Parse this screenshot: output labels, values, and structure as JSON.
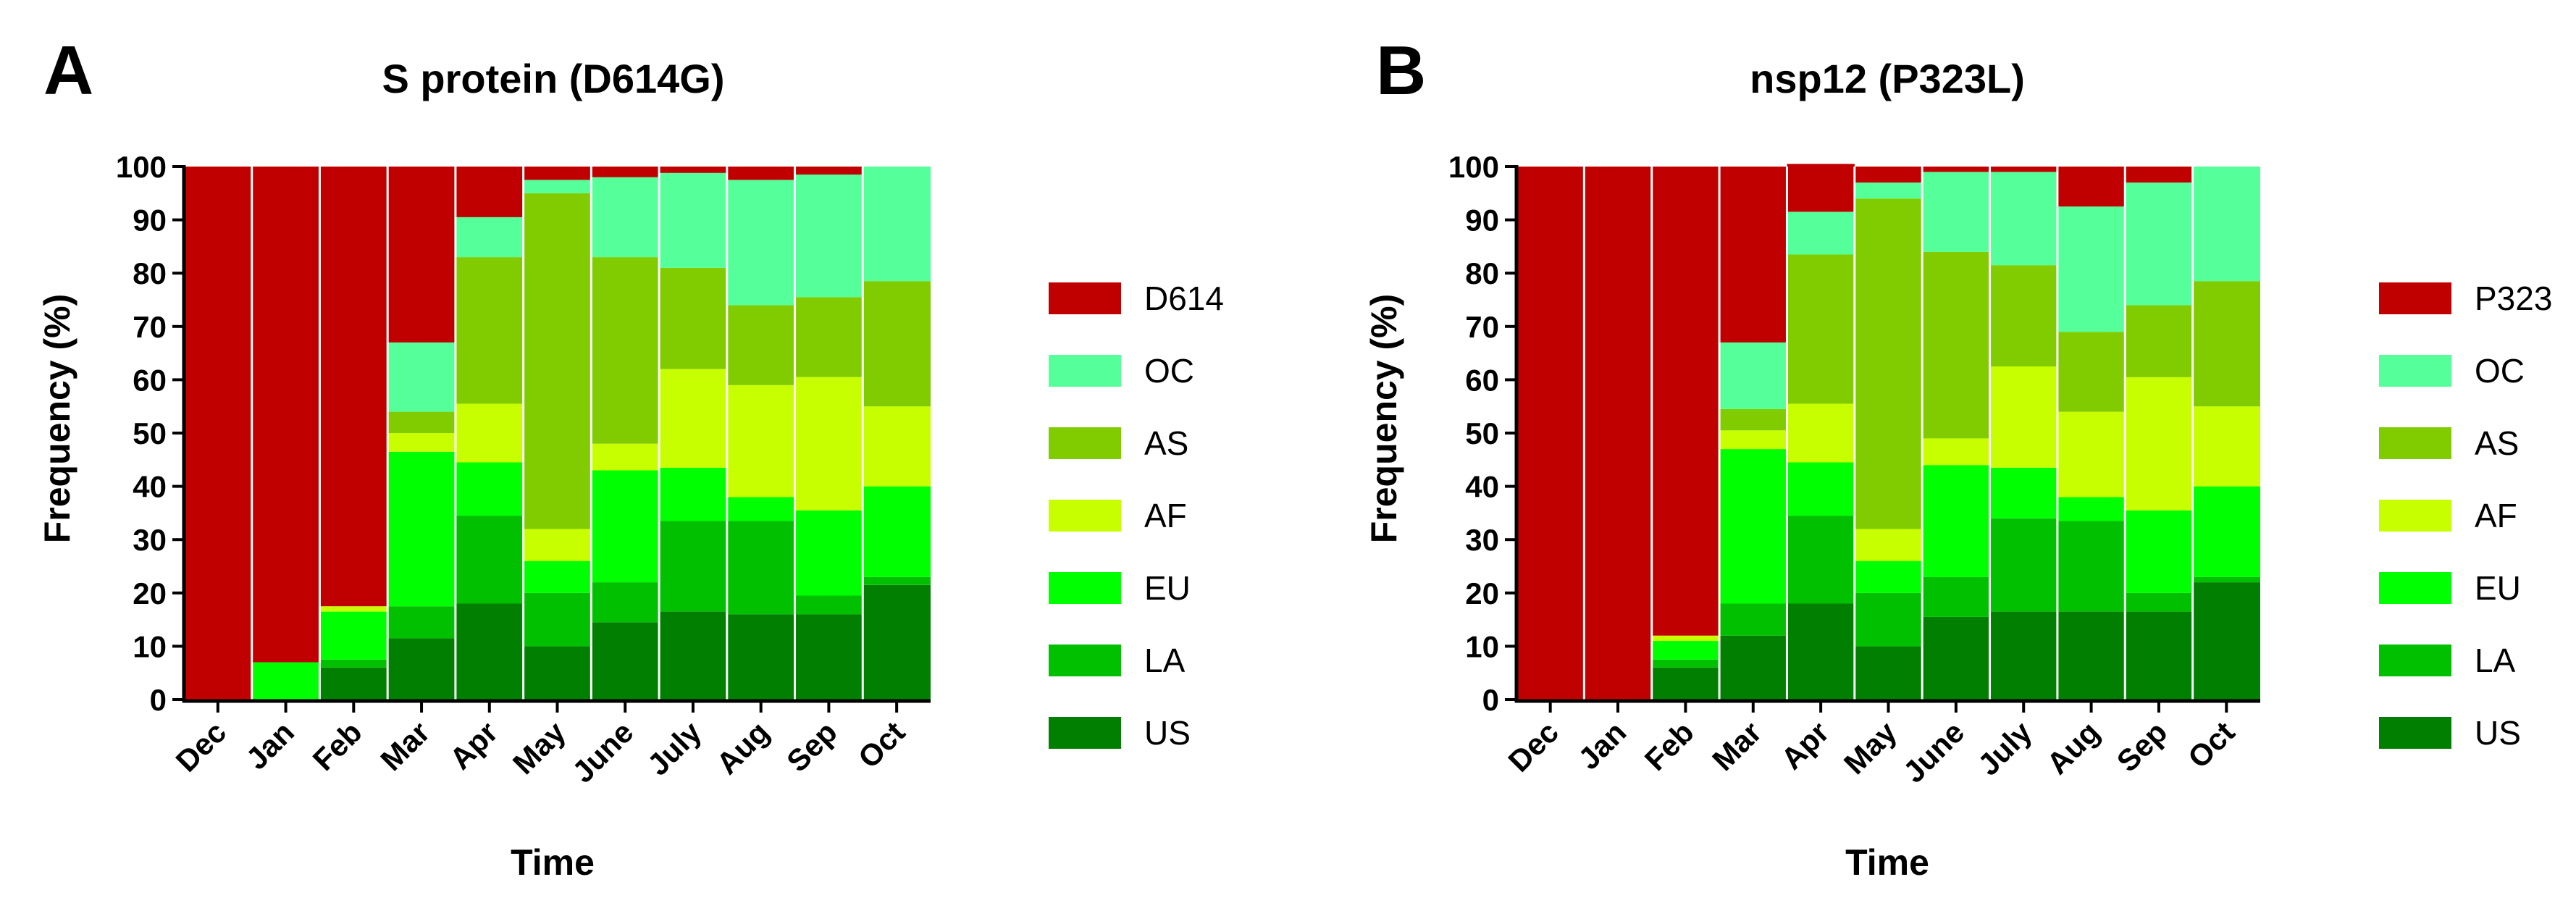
{
  "figure": {
    "panels": [
      {
        "letter": "A"
      },
      {
        "letter": "B"
      }
    ]
  },
  "chart_data": [
    {
      "type": "bar",
      "stacked": true,
      "title": "S protein (D614G)",
      "xlabel": "Time",
      "ylabel": "Frequency (%)",
      "ylim": [
        0,
        100
      ],
      "yticks": [
        0,
        10,
        20,
        30,
        40,
        50,
        60,
        70,
        80,
        90,
        100
      ],
      "categories": [
        "Dec",
        "Jan",
        "Feb",
        "Mar",
        "Apr",
        "May",
        "June",
        "July",
        "Aug",
        "Sep",
        "Oct"
      ],
      "legend_position": "right",
      "series": [
        {
          "name": "US",
          "color": "#007F00",
          "values": [
            0,
            0,
            6,
            11.5,
            18,
            10,
            14.5,
            16.5,
            16,
            16,
            21.5
          ]
        },
        {
          "name": "LA",
          "color": "#00C000",
          "values": [
            0,
            0,
            1.5,
            6,
            16.5,
            10,
            7.5,
            17,
            17.5,
            3.5,
            1.5
          ]
        },
        {
          "name": "EU",
          "color": "#00FF00",
          "values": [
            0,
            7,
            9,
            29,
            10,
            6,
            21,
            10,
            4.5,
            16,
            17
          ]
        },
        {
          "name": "AF",
          "color": "#C8FF00",
          "values": [
            0,
            0,
            1,
            3.5,
            11,
            6,
            5,
            18.5,
            21,
            25,
            15
          ]
        },
        {
          "name": "AS",
          "color": "#80CC00",
          "values": [
            0,
            0,
            0,
            4,
            27.5,
            63,
            35,
            19,
            15,
            15,
            23.5
          ]
        },
        {
          "name": "OC",
          "color": "#55FF99",
          "values": [
            0,
            0,
            0,
            13,
            7.5,
            2.5,
            15,
            17.8,
            23.5,
            23,
            21.5
          ]
        },
        {
          "name": "D614",
          "color": "#C00000",
          "values": [
            100,
            93,
            82.5,
            33,
            9.5,
            2.5,
            2,
            1.2,
            2.5,
            1.5,
            0
          ]
        }
      ]
    },
    {
      "type": "bar",
      "stacked": true,
      "title": "nsp12 (P323L)",
      "xlabel": "Time",
      "ylabel": "Frequency (%)",
      "ylim": [
        0,
        100
      ],
      "yticks": [
        0,
        10,
        20,
        30,
        40,
        50,
        60,
        70,
        80,
        90,
        100
      ],
      "categories": [
        "Dec",
        "Jan",
        "Feb",
        "Mar",
        "Apr",
        "May",
        "June",
        "July",
        "Aug",
        "Sep",
        "Oct"
      ],
      "legend_position": "right",
      "series": [
        {
          "name": "US",
          "color": "#007F00",
          "values": [
            0,
            0,
            6,
            12,
            18,
            10,
            15.5,
            16.5,
            16.5,
            16.5,
            22
          ]
        },
        {
          "name": "LA",
          "color": "#00C000",
          "values": [
            0,
            0,
            1.5,
            6,
            16.5,
            10,
            7.5,
            17.5,
            17,
            3.5,
            1
          ]
        },
        {
          "name": "EU",
          "color": "#00FF00",
          "values": [
            0,
            0,
            3.5,
            29,
            10,
            6,
            21,
            9.5,
            4.5,
            15.5,
            17
          ]
        },
        {
          "name": "AF",
          "color": "#C8FF00",
          "values": [
            0,
            0,
            1,
            3.5,
            11,
            6,
            5,
            19,
            16,
            25,
            15
          ]
        },
        {
          "name": "AS",
          "color": "#80CC00",
          "values": [
            0,
            0,
            0,
            4,
            28,
            62,
            35,
            19,
            15,
            13.5,
            23.5
          ]
        },
        {
          "name": "OC",
          "color": "#55FF99",
          "values": [
            0,
            0,
            0,
            12.5,
            8,
            3,
            15,
            17.5,
            23.5,
            23,
            21.5
          ]
        },
        {
          "name": "P323",
          "color": "#C00000",
          "values": [
            100,
            100,
            88,
            33,
            9,
            3,
            1,
            1,
            7.5,
            3,
            0
          ]
        }
      ]
    }
  ]
}
